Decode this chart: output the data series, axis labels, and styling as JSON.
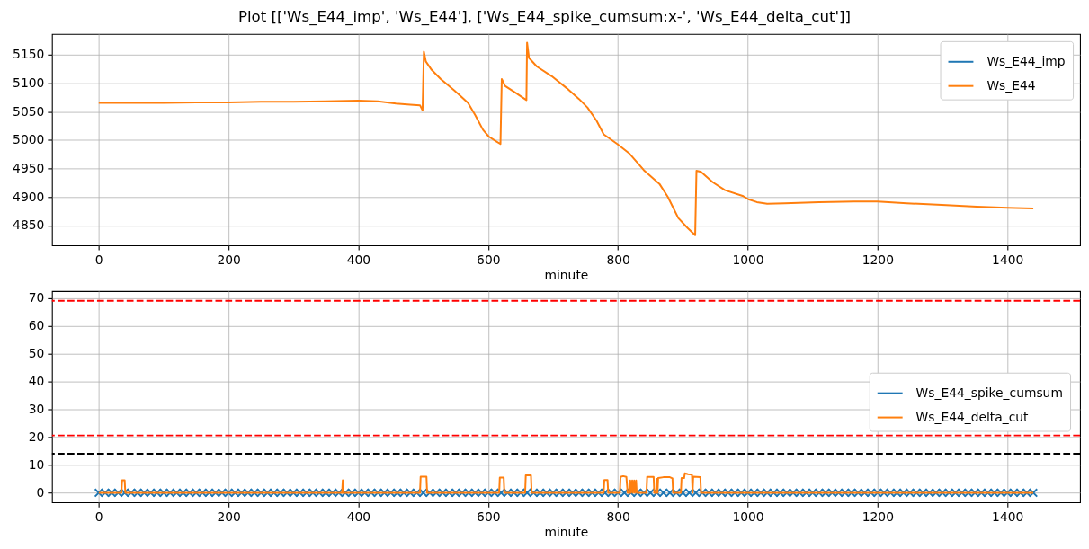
{
  "chart_data": [
    {
      "type": "line",
      "title": "Plot [['Ws_E44_imp', 'Ws_E44'], ['Ws_E44_spike_cumsum:x-', 'Ws_E44_delta_cut']]",
      "xlabel": "minute",
      "x": [
        0,
        50,
        100,
        150,
        200,
        250,
        300,
        350,
        400,
        430,
        458,
        480,
        495,
        499,
        501,
        504,
        513,
        527,
        548,
        569,
        580,
        592,
        601,
        612,
        619,
        621,
        626,
        642,
        659,
        660,
        663,
        675,
        698,
        721,
        740,
        753,
        767,
        778,
        799,
        818,
        840,
        864,
        877,
        893,
        907,
        919,
        921,
        928,
        946,
        965,
        992,
        1001,
        1014,
        1030,
        1057,
        1110,
        1164,
        1200,
        1245,
        1299,
        1353,
        1400,
        1440
      ],
      "series": [
        {
          "name": "Ws_E44_imp",
          "color": "#1f77b4",
          "values": [
            null,
            null,
            null,
            null,
            null,
            null,
            null,
            null,
            null,
            null,
            null,
            null,
            null,
            null,
            null,
            null,
            null,
            null,
            null,
            null,
            null,
            null,
            null,
            null,
            null,
            null,
            null,
            null,
            null,
            null,
            null,
            null,
            null,
            null,
            null,
            null,
            null,
            null,
            null,
            null,
            null,
            null,
            null,
            null,
            null,
            null,
            null,
            null,
            null,
            null,
            null,
            null,
            null,
            null,
            null,
            null,
            null,
            null,
            null,
            null,
            null,
            null,
            null
          ]
        },
        {
          "name": "Ws_E44",
          "color": "#ff7f0e",
          "values": [
            5065,
            5065,
            5065,
            5066,
            5066,
            5067,
            5067,
            5068,
            5069,
            5068,
            5064,
            5062,
            5061,
            5052,
            5155,
            5138,
            5123,
            5107,
            5087,
            5065,
            5044,
            5018,
            5006,
            4998,
            4993,
            5107,
            5095,
            5083,
            5070,
            5171,
            5144,
            5129,
            5112,
            5091,
            5072,
            5057,
            5034,
            5010,
            4993,
            4976,
            4947,
            4923,
            4900,
            4863,
            4846,
            4833,
            4946,
            4944,
            4926,
            4912,
            4902,
            4896,
            4891,
            4888,
            4889,
            4891,
            4892,
            4892,
            4889,
            4886,
            4883,
            4881,
            4880
          ]
        }
      ],
      "xlim": [
        -72,
        1512
      ],
      "xticks": [
        0,
        200,
        400,
        600,
        800,
        1000,
        1200,
        1400
      ],
      "ylim": [
        4815,
        5186
      ],
      "yticks": [
        4850,
        4900,
        4950,
        5000,
        5050,
        5100,
        5150
      ],
      "grid": true,
      "legend": "top right",
      "line_style": "solid"
    },
    {
      "type": "line",
      "xlabel": "minute",
      "series": [
        {
          "name": "Ws_E44_spike_cumsum",
          "color": "#1f77b4",
          "type": "scatter",
          "marker": "cross",
          "x": [
            0,
            10,
            20,
            30,
            40,
            50,
            60,
            70,
            80,
            90,
            100,
            110,
            120,
            130,
            140,
            150,
            160,
            170,
            180,
            190,
            200,
            210,
            220,
            230,
            240,
            250,
            260,
            270,
            280,
            290,
            300,
            310,
            320,
            330,
            340,
            350,
            360,
            370,
            380,
            390,
            400,
            410,
            420,
            430,
            440,
            450,
            460,
            470,
            480,
            490,
            500,
            510,
            520,
            530,
            540,
            550,
            560,
            570,
            580,
            590,
            600,
            610,
            620,
            630,
            640,
            650,
            660,
            670,
            680,
            690,
            700,
            710,
            720,
            730,
            740,
            750,
            760,
            770,
            780,
            790,
            800,
            810,
            820,
            830,
            840,
            850,
            860,
            870,
            880,
            890,
            900,
            910,
            920,
            930,
            940,
            950,
            960,
            970,
            980,
            990,
            1000,
            1010,
            1020,
            1030,
            1040,
            1050,
            1060,
            1070,
            1080,
            1090,
            1100,
            1110,
            1120,
            1130,
            1140,
            1150,
            1160,
            1170,
            1180,
            1190,
            1200,
            1210,
            1220,
            1230,
            1240,
            1250,
            1260,
            1270,
            1280,
            1290,
            1300,
            1310,
            1320,
            1330,
            1340,
            1350,
            1360,
            1370,
            1380,
            1390,
            1400,
            1410,
            1420,
            1430,
            1440
          ],
          "values": [
            0,
            0,
            0,
            0,
            0,
            0,
            0,
            0,
            0,
            0,
            0,
            0,
            0,
            0,
            0,
            0,
            0,
            0,
            0,
            0,
            0,
            0,
            0,
            0,
            0,
            0,
            0,
            0,
            0,
            0,
            0,
            0,
            0,
            0,
            0,
            0,
            0,
            0,
            0,
            0,
            0,
            0,
            0,
            0,
            0,
            0,
            0,
            0,
            0,
            0,
            0,
            0,
            0,
            0,
            0,
            0,
            0,
            0,
            0,
            0,
            0,
            0,
            0,
            0,
            0,
            0,
            0,
            0,
            0,
            0,
            0,
            0,
            0,
            0,
            0,
            0,
            0,
            0,
            0,
            0,
            0,
            0,
            0,
            0,
            0,
            0,
            0,
            0,
            0,
            0,
            0,
            0,
            0,
            0,
            0,
            0,
            0,
            0,
            0,
            0,
            0,
            0,
            0,
            0,
            0,
            0,
            0,
            0,
            0,
            0,
            0,
            0,
            0,
            0,
            0,
            0,
            0,
            0,
            0,
            0,
            0,
            0,
            0,
            0,
            0,
            0,
            0,
            0,
            0,
            0,
            0,
            0,
            0,
            0,
            0,
            0,
            0,
            0,
            0,
            0,
            0,
            0,
            0,
            0,
            0
          ]
        },
        {
          "name": "Ws_E44_delta_cut",
          "color": "#ff7f0e",
          "x": [
            0,
            35,
            36,
            40,
            41,
            375,
            376,
            377,
            495,
            496,
            505,
            506,
            617,
            618,
            624,
            625,
            657,
            658,
            666,
            667,
            778,
            779,
            784,
            785,
            803,
            804,
            808,
            813,
            815,
            818,
            819,
            820,
            822,
            823,
            825,
            826,
            828,
            829,
            844,
            845,
            855,
            856,
            859,
            860,
            861,
            862,
            870,
            880,
            884,
            885,
            897,
            898,
            902,
            903,
            908,
            914,
            915,
            916,
            927,
            928,
            1440
          ],
          "values": [
            0,
            0,
            4.5,
            4.5,
            0,
            0,
            4.5,
            0,
            0,
            5.8,
            5.8,
            0,
            0,
            5.5,
            5.5,
            0,
            0,
            6.3,
            6.3,
            0,
            0,
            4.6,
            4.6,
            0,
            0,
            5.7,
            6,
            5.7,
            0,
            0,
            4.4,
            0,
            4.4,
            0,
            4.4,
            0,
            4.4,
            0,
            0,
            5.7,
            5.7,
            0,
            0,
            5,
            0,
            5.3,
            5.6,
            5.6,
            5.2,
            0,
            0,
            5.3,
            5.3,
            7,
            6.7,
            6.5,
            0,
            5.8,
            5.6,
            0,
            0
          ]
        }
      ],
      "ref_lines": [
        {
          "axis": "y",
          "value": 69,
          "color": "#ff0000",
          "line_style": "dashed"
        },
        {
          "axis": "y",
          "value": 20.6,
          "color": "#ff0000",
          "line_style": "dashed"
        },
        {
          "axis": "y",
          "value": 14,
          "color": "#000000",
          "line_style": "dashed"
        }
      ],
      "xlim": [
        -72,
        1512
      ],
      "xticks": [
        0,
        200,
        400,
        600,
        800,
        1000,
        1200,
        1400
      ],
      "ylim": [
        -3.45,
        72.45
      ],
      "yticks": [
        0,
        10,
        20,
        30,
        40,
        50,
        60,
        70
      ],
      "grid": true,
      "legend": "right",
      "line_style": "solid"
    }
  ]
}
